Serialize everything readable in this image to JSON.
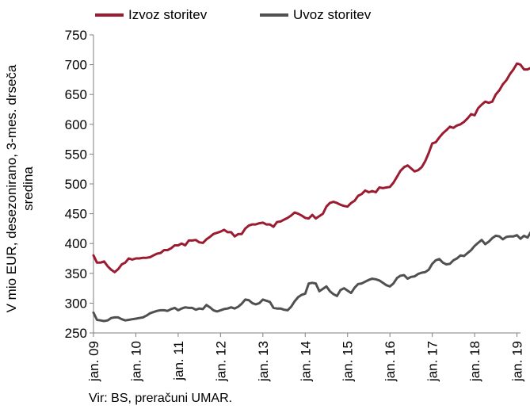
{
  "chart_data": {
    "type": "line",
    "ylabel": "V mio EUR, desezonirano, 3-mes. drseča sredina",
    "ylim": [
      250,
      750
    ],
    "yticks": [
      250,
      300,
      350,
      400,
      450,
      500,
      550,
      600,
      650,
      700,
      750
    ],
    "x_range": [
      2009.0,
      2019.0833
    ],
    "xticks": [
      {
        "label": "jan. 09",
        "value": 2009
      },
      {
        "label": "jan. 10",
        "value": 2010
      },
      {
        "label": "jan. 11",
        "value": 2011
      },
      {
        "label": "jan. 12",
        "value": 2012
      },
      {
        "label": "jan. 13",
        "value": 2013
      },
      {
        "label": "jan. 14",
        "value": 2014
      },
      {
        "label": "jan. 15",
        "value": 2015
      },
      {
        "label": "jan. 16",
        "value": 2016
      },
      {
        "label": "jan. 17",
        "value": 2017
      },
      {
        "label": "jan. 18",
        "value": 2018
      },
      {
        "label": "jan. 19",
        "value": 2019
      }
    ],
    "grid": false,
    "legend_position": "top-left",
    "source": "Vir: BS, preračuni UMAR.",
    "series": [
      {
        "name": "Izvoz storitev",
        "color": "#9b1b30",
        "points": [
          [
            2009.0,
            380
          ],
          [
            2009.083,
            368
          ],
          [
            2009.167,
            368
          ],
          [
            2009.25,
            370
          ],
          [
            2009.333,
            362
          ],
          [
            2009.417,
            356
          ],
          [
            2009.5,
            352
          ],
          [
            2009.583,
            357
          ],
          [
            2009.667,
            365
          ],
          [
            2009.75,
            368
          ],
          [
            2009.833,
            375
          ],
          [
            2009.917,
            373
          ],
          [
            2010.0,
            375
          ],
          [
            2010.083,
            375
          ],
          [
            2010.167,
            376
          ],
          [
            2010.25,
            376
          ],
          [
            2010.333,
            377
          ],
          [
            2010.417,
            380
          ],
          [
            2010.5,
            383
          ],
          [
            2010.583,
            384
          ],
          [
            2010.667,
            389
          ],
          [
            2010.75,
            389
          ],
          [
            2010.833,
            392
          ],
          [
            2010.917,
            397
          ],
          [
            2011.0,
            397
          ],
          [
            2011.083,
            400
          ],
          [
            2011.167,
            397
          ],
          [
            2011.25,
            405
          ],
          [
            2011.333,
            405
          ],
          [
            2011.417,
            406
          ],
          [
            2011.5,
            402
          ],
          [
            2011.583,
            401
          ],
          [
            2011.667,
            407
          ],
          [
            2011.75,
            411
          ],
          [
            2011.833,
            416
          ],
          [
            2011.917,
            418
          ],
          [
            2012.0,
            420
          ],
          [
            2012.083,
            423
          ],
          [
            2012.167,
            419
          ],
          [
            2012.25,
            419
          ],
          [
            2012.333,
            412
          ],
          [
            2012.417,
            416
          ],
          [
            2012.5,
            416
          ],
          [
            2012.583,
            425
          ],
          [
            2012.667,
            430
          ],
          [
            2012.75,
            432
          ],
          [
            2012.833,
            432
          ],
          [
            2012.917,
            434
          ],
          [
            2013.0,
            435
          ],
          [
            2013.083,
            432
          ],
          [
            2013.167,
            432
          ],
          [
            2013.25,
            428
          ],
          [
            2013.333,
            436
          ],
          [
            2013.417,
            437
          ],
          [
            2013.5,
            440
          ],
          [
            2013.583,
            443
          ],
          [
            2013.667,
            447
          ],
          [
            2013.75,
            452
          ],
          [
            2013.833,
            450
          ],
          [
            2013.917,
            447
          ],
          [
            2014.0,
            443
          ],
          [
            2014.083,
            442
          ],
          [
            2014.167,
            448
          ],
          [
            2014.25,
            442
          ],
          [
            2014.333,
            446
          ],
          [
            2014.417,
            450
          ],
          [
            2014.5,
            462
          ],
          [
            2014.583,
            468
          ],
          [
            2014.667,
            470
          ],
          [
            2014.75,
            468
          ],
          [
            2014.833,
            465
          ],
          [
            2014.917,
            463
          ],
          [
            2015.0,
            462
          ],
          [
            2015.083,
            468
          ],
          [
            2015.167,
            472
          ],
          [
            2015.25,
            480
          ],
          [
            2015.333,
            483
          ],
          [
            2015.417,
            489
          ],
          [
            2015.5,
            486
          ],
          [
            2015.583,
            488
          ],
          [
            2015.667,
            486
          ],
          [
            2015.75,
            494
          ],
          [
            2015.833,
            493
          ],
          [
            2015.917,
            494
          ],
          [
            2016.0,
            495
          ],
          [
            2016.083,
            502
          ],
          [
            2016.167,
            512
          ],
          [
            2016.25,
            522
          ],
          [
            2016.333,
            528
          ],
          [
            2016.417,
            531
          ],
          [
            2016.5,
            526
          ],
          [
            2016.583,
            521
          ],
          [
            2016.667,
            523
          ],
          [
            2016.75,
            528
          ],
          [
            2016.833,
            538
          ],
          [
            2016.917,
            552
          ],
          [
            2017.0,
            568
          ],
          [
            2017.083,
            570
          ],
          [
            2017.167,
            578
          ],
          [
            2017.25,
            585
          ],
          [
            2017.333,
            590
          ],
          [
            2017.417,
            596
          ],
          [
            2017.5,
            594
          ],
          [
            2017.583,
            598
          ],
          [
            2017.667,
            600
          ],
          [
            2017.75,
            604
          ],
          [
            2017.833,
            610
          ],
          [
            2017.917,
            617
          ],
          [
            2018.0,
            615
          ],
          [
            2018.083,
            627
          ],
          [
            2018.167,
            633
          ],
          [
            2018.25,
            638
          ],
          [
            2018.333,
            636
          ],
          [
            2018.417,
            638
          ],
          [
            2018.5,
            650
          ],
          [
            2018.583,
            657
          ],
          [
            2018.667,
            667
          ],
          [
            2018.75,
            674
          ],
          [
            2018.833,
            684
          ],
          [
            2018.917,
            692
          ],
          [
            2019.0,
            702
          ],
          [
            2019.083,
            700
          ],
          [
            2019.167,
            692
          ],
          [
            2019.25,
            692
          ],
          [
            2019.333,
            695
          ],
          [
            2019.417,
            708
          ]
        ]
      },
      {
        "name": "Uvoz storitev",
        "color": "#505050",
        "points": [
          [
            2009.0,
            284
          ],
          [
            2009.083,
            272
          ],
          [
            2009.167,
            271
          ],
          [
            2009.25,
            270
          ],
          [
            2009.333,
            271
          ],
          [
            2009.417,
            275
          ],
          [
            2009.5,
            276
          ],
          [
            2009.583,
            276
          ],
          [
            2009.667,
            273
          ],
          [
            2009.75,
            271
          ],
          [
            2009.833,
            272
          ],
          [
            2009.917,
            273
          ],
          [
            2010.0,
            274
          ],
          [
            2010.083,
            275
          ],
          [
            2010.167,
            276
          ],
          [
            2010.25,
            279
          ],
          [
            2010.333,
            283
          ],
          [
            2010.417,
            285
          ],
          [
            2010.5,
            287
          ],
          [
            2010.583,
            288
          ],
          [
            2010.667,
            288
          ],
          [
            2010.75,
            287
          ],
          [
            2010.833,
            290
          ],
          [
            2010.917,
            292
          ],
          [
            2011.0,
            288
          ],
          [
            2011.083,
            291
          ],
          [
            2011.167,
            293
          ],
          [
            2011.25,
            292
          ],
          [
            2011.333,
            292
          ],
          [
            2011.417,
            289
          ],
          [
            2011.5,
            291
          ],
          [
            2011.583,
            290
          ],
          [
            2011.667,
            297
          ],
          [
            2011.75,
            293
          ],
          [
            2011.833,
            288
          ],
          [
            2011.917,
            286
          ],
          [
            2012.0,
            288
          ],
          [
            2012.083,
            290
          ],
          [
            2012.167,
            291
          ],
          [
            2012.25,
            293
          ],
          [
            2012.333,
            291
          ],
          [
            2012.417,
            294
          ],
          [
            2012.5,
            299
          ],
          [
            2012.583,
            306
          ],
          [
            2012.667,
            305
          ],
          [
            2012.75,
            300
          ],
          [
            2012.833,
            298
          ],
          [
            2012.917,
            300
          ],
          [
            2013.0,
            306
          ],
          [
            2013.083,
            304
          ],
          [
            2013.167,
            302
          ],
          [
            2013.25,
            292
          ],
          [
            2013.333,
            291
          ],
          [
            2013.417,
            291
          ],
          [
            2013.5,
            289
          ],
          [
            2013.583,
            288
          ],
          [
            2013.667,
            294
          ],
          [
            2013.75,
            303
          ],
          [
            2013.833,
            310
          ],
          [
            2013.917,
            314
          ],
          [
            2014.0,
            316
          ],
          [
            2014.083,
            333
          ],
          [
            2014.167,
            334
          ],
          [
            2014.25,
            333
          ],
          [
            2014.333,
            320
          ],
          [
            2014.417,
            324
          ],
          [
            2014.5,
            328
          ],
          [
            2014.583,
            320
          ],
          [
            2014.667,
            315
          ],
          [
            2014.75,
            312
          ],
          [
            2014.833,
            322
          ],
          [
            2014.917,
            325
          ],
          [
            2015.0,
            321
          ],
          [
            2015.083,
            317
          ],
          [
            2015.167,
            326
          ],
          [
            2015.25,
            332
          ],
          [
            2015.333,
            333
          ],
          [
            2015.417,
            336
          ],
          [
            2015.5,
            339
          ],
          [
            2015.583,
            341
          ],
          [
            2015.667,
            340
          ],
          [
            2015.75,
            338
          ],
          [
            2015.833,
            334
          ],
          [
            2015.917,
            330
          ],
          [
            2016.0,
            328
          ],
          [
            2016.083,
            333
          ],
          [
            2016.167,
            342
          ],
          [
            2016.25,
            346
          ],
          [
            2016.333,
            347
          ],
          [
            2016.417,
            341
          ],
          [
            2016.5,
            344
          ],
          [
            2016.583,
            345
          ],
          [
            2016.667,
            349
          ],
          [
            2016.75,
            351
          ],
          [
            2016.833,
            352
          ],
          [
            2016.917,
            356
          ],
          [
            2017.0,
            366
          ],
          [
            2017.083,
            372
          ],
          [
            2017.167,
            374
          ],
          [
            2017.25,
            368
          ],
          [
            2017.333,
            365
          ],
          [
            2017.417,
            366
          ],
          [
            2017.5,
            372
          ],
          [
            2017.583,
            375
          ],
          [
            2017.667,
            380
          ],
          [
            2017.75,
            379
          ],
          [
            2017.833,
            384
          ],
          [
            2017.917,
            389
          ],
          [
            2018.0,
            396
          ],
          [
            2018.083,
            401
          ],
          [
            2018.167,
            406
          ],
          [
            2018.25,
            399
          ],
          [
            2018.333,
            403
          ],
          [
            2018.417,
            409
          ],
          [
            2018.5,
            413
          ],
          [
            2018.583,
            412
          ],
          [
            2018.667,
            407
          ],
          [
            2018.75,
            411
          ],
          [
            2018.833,
            412
          ],
          [
            2018.917,
            412
          ],
          [
            2019.0,
            414
          ],
          [
            2019.083,
            408
          ],
          [
            2019.167,
            413
          ],
          [
            2019.25,
            410
          ],
          [
            2019.333,
            420
          ],
          [
            2019.417,
            423
          ]
        ]
      }
    ]
  }
}
